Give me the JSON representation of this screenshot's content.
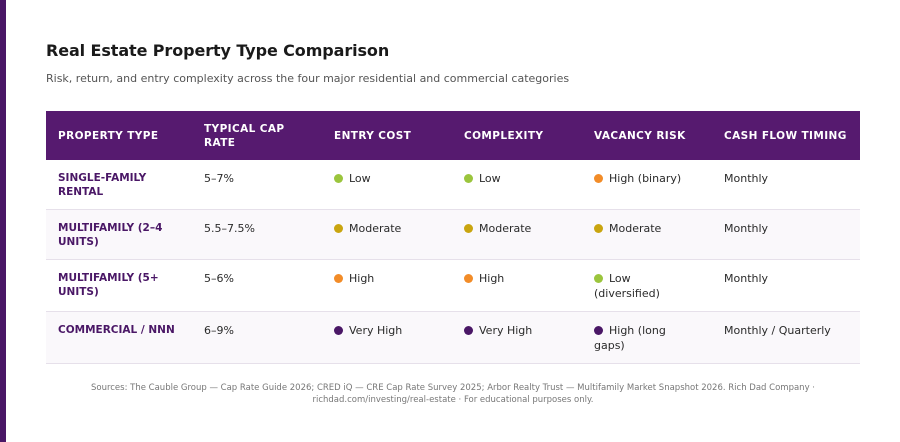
{
  "title": "Real Estate Property Type Comparison",
  "subtitle": "Risk, return, and entry complexity across the four major residential and commercial categories",
  "colors": {
    "accent": "#561a6f",
    "green": "#9bc53d",
    "yellow": "#c9a50f",
    "orange": "#f28c28",
    "purple": "#4a1766"
  },
  "headers": [
    "PROPERTY TYPE",
    "TYPICAL CAP RATE",
    "ENTRY COST",
    "COMPLEXITY",
    "VACANCY RISK",
    "CASH FLOW TIMING"
  ],
  "rows": [
    {
      "type": "SINGLE-FAMILY RENTAL",
      "cap": "5–7%",
      "entry": {
        "label": "Low",
        "color": "#9bc53d"
      },
      "complexity": {
        "label": "Low",
        "color": "#9bc53d"
      },
      "vacancy": {
        "label": "High (binary)",
        "color": "#f28c28"
      },
      "timing": "Monthly"
    },
    {
      "type": "MULTIFAMILY (2–4 UNITS)",
      "cap": "5.5–7.5%",
      "entry": {
        "label": "Moderate",
        "color": "#c9a50f"
      },
      "complexity": {
        "label": "Moderate",
        "color": "#c9a50f"
      },
      "vacancy": {
        "label": "Moderate",
        "color": "#c9a50f"
      },
      "timing": "Monthly"
    },
    {
      "type": "MULTIFAMILY (5+ UNITS)",
      "cap": "5–6%",
      "entry": {
        "label": "High",
        "color": "#f28c28"
      },
      "complexity": {
        "label": "High",
        "color": "#f28c28"
      },
      "vacancy": {
        "label": "Low (diversified)",
        "color": "#9bc53d"
      },
      "timing": "Monthly"
    },
    {
      "type": "COMMERCIAL / NNN",
      "cap": "6–9%",
      "entry": {
        "label": "Very High",
        "color": "#4a1766"
      },
      "complexity": {
        "label": "Very High",
        "color": "#4a1766"
      },
      "vacancy": {
        "label": "High (long gaps)",
        "color": "#4a1766"
      },
      "timing": "Monthly / Quarterly"
    }
  ],
  "footer": "Sources: The Cauble Group — Cap Rate Guide 2026; CRED iQ — CRE Cap Rate Survey 2025; Arbor Realty Trust — Multifamily Market Snapshot 2026. Rich Dad Company · richdad.com/investing/real-estate · For educational purposes only."
}
